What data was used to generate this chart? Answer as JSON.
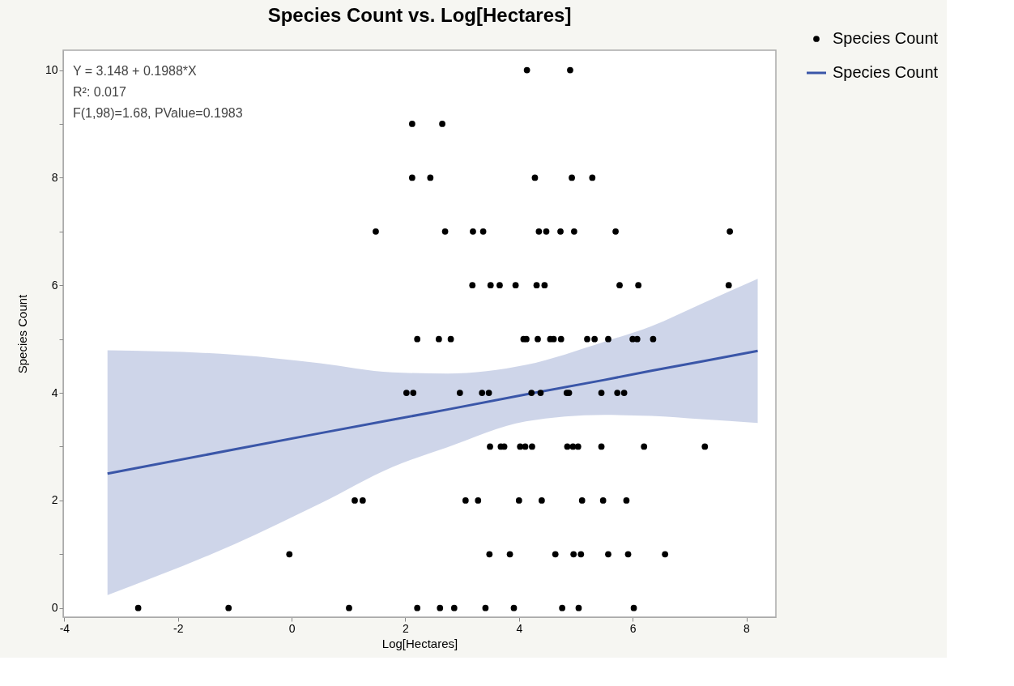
{
  "chart_data": {
    "type": "scatter",
    "title": "Species Count vs. Log[Hectares]",
    "xlabel": "Log[Hectares]",
    "ylabel": "Species Count",
    "annotations": [
      "Y = 3.148 + 0.1988*X",
      "R²: 0.017",
      "F(1,98)=1.68, PValue=0.1983"
    ],
    "xlim": [
      -4.02,
      8.52
    ],
    "ylim": [
      -0.17,
      10.37
    ],
    "xticks": [
      -4,
      -2,
      0,
      2,
      4,
      6,
      8
    ],
    "yticks": [
      0,
      {
        "value": 1,
        "label": null
      },
      2,
      {
        "value": 3,
        "label": null
      },
      4,
      {
        "value": 5,
        "label": null
      },
      6,
      {
        "value": 7,
        "label": null
      },
      8,
      {
        "value": 9,
        "label": null
      },
      10
    ],
    "grid": false,
    "legend": "top right",
    "series": [
      {
        "name": "Species Count",
        "type": "scatter",
        "marker": "circle",
        "color": "#000000",
        "x": [
          4.14,
          4.9,
          2.12,
          2.65,
          2.12,
          2.44,
          4.28,
          4.93,
          5.29,
          1.48,
          2.7,
          3.19,
          3.37,
          4.35,
          4.48,
          4.73,
          4.97,
          5.7,
          7.71,
          3.18,
          3.5,
          3.66,
          3.94,
          4.31,
          4.45,
          5.77,
          6.1,
          7.69,
          2.21,
          2.59,
          2.8,
          4.08,
          4.13,
          4.33,
          4.55,
          4.61,
          4.74,
          5.2,
          5.33,
          5.57,
          6.0,
          6.08,
          6.36,
          2.02,
          2.14,
          2.96,
          3.35,
          3.47,
          4.22,
          4.38,
          4.84,
          4.88,
          5.45,
          5.73,
          5.85,
          3.49,
          3.68,
          3.74,
          4.02,
          4.11,
          4.23,
          4.85,
          4.95,
          5.04,
          5.45,
          6.2,
          7.27,
          1.11,
          1.25,
          3.06,
          3.28,
          4.0,
          4.4,
          5.11,
          5.48,
          5.89,
          -0.04,
          3.48,
          3.84,
          4.64,
          4.96,
          5.09,
          5.57,
          5.92,
          6.57,
          -2.7,
          -1.11,
          1.01,
          2.21,
          2.61,
          2.86,
          3.41,
          3.91,
          4.76,
          5.05,
          6.02
        ],
        "values": [
          10,
          10,
          9,
          9,
          8,
          8,
          8,
          8,
          8,
          7,
          7,
          7,
          7,
          7,
          7,
          7,
          7,
          7,
          7,
          6,
          6,
          6,
          6,
          6,
          6,
          6,
          6,
          6,
          5,
          5,
          5,
          5,
          5,
          5,
          5,
          5,
          5,
          5,
          5,
          5,
          5,
          5,
          5,
          4,
          4,
          4,
          4,
          4,
          4,
          4,
          4,
          4,
          4,
          4,
          4,
          3,
          3,
          3,
          3,
          3,
          3,
          3,
          3,
          3,
          3,
          3,
          3,
          2,
          2,
          2,
          2,
          2,
          2,
          2,
          2,
          2,
          1,
          1,
          1,
          1,
          1,
          1,
          1,
          1,
          1,
          0,
          0,
          0,
          0,
          0,
          0,
          0,
          0,
          0,
          0,
          0
        ]
      },
      {
        "name": "Species Count",
        "type": "line",
        "marker": "none",
        "color": "#3a56a8",
        "x": [
          -3.24,
          -1,
          0.5,
          1.77,
          2.74,
          4.12,
          5.5,
          6.33,
          7.2,
          8.2
        ],
        "values": [
          2.5,
          2.95,
          3.25,
          3.5,
          3.69,
          3.97,
          4.24,
          4.41,
          4.58,
          4.78
        ],
        "lower": [
          0.24,
          1.19,
          1.94,
          2.62,
          2.99,
          3.47,
          3.59,
          3.57,
          3.51,
          3.44
        ],
        "upper": [
          4.79,
          4.71,
          4.55,
          4.38,
          4.36,
          4.52,
          4.95,
          5.24,
          5.65,
          6.12
        ]
      }
    ]
  }
}
